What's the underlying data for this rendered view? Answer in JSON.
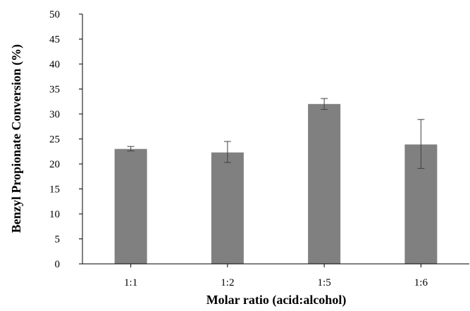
{
  "chart_data": {
    "type": "bar",
    "title": "",
    "xlabel": "Molar ratio (acid:alcohol)",
    "ylabel": "Benzyl Propionate Conversion (%)",
    "categories": [
      "1:1",
      "1:2",
      "1:5",
      "1:6"
    ],
    "values": [
      23.0,
      22.3,
      32.0,
      23.9
    ],
    "error_bars": [
      {
        "low": 22.6,
        "high": 23.5
      },
      {
        "low": 20.3,
        "high": 24.5
      },
      {
        "low": 30.9,
        "high": 33.1
      },
      {
        "low": 19.1,
        "high": 28.9
      }
    ],
    "ylim": [
      0,
      50
    ],
    "yticks": [
      0,
      5,
      10,
      15,
      20,
      25,
      30,
      35,
      40,
      45,
      50
    ],
    "grid": false,
    "legend": "none",
    "bar_color": "#808080",
    "error_bar_color": "#404040",
    "axis_color": "#000000"
  }
}
